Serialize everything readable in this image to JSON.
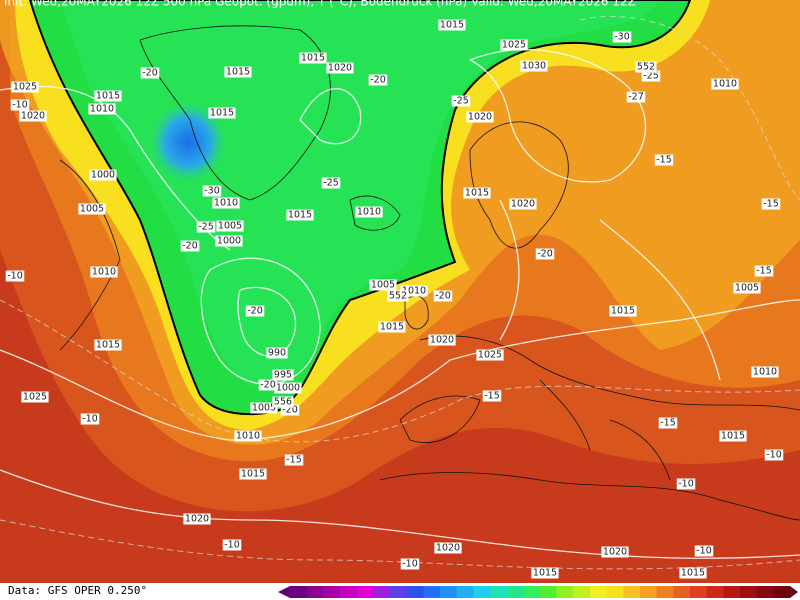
{
  "header": {
    "text": "Init: Wed,20MAY2026 12Z    500 hPa Geopot. (gpdm), T (°C), Bodendruck (hPa)    Valid: Wed,20MAY2026 12Z"
  },
  "footer": {
    "source": "Data: GFS OPER 0.250°"
  },
  "map": {
    "isobar_labels": [
      "1015",
      "1015",
      "1015",
      "1020",
      "1025",
      "1030",
      "1010",
      "1025",
      "1015",
      "1010",
      "1020",
      "1015",
      "1020",
      "1000",
      "1015",
      "1005",
      "1010",
      "1005",
      "1000",
      "1015",
      "1010",
      "1020",
      "1010",
      "1005",
      "1010",
      "1005",
      "1015",
      "1015",
      "1020",
      "1025",
      "990",
      "995",
      "1000",
      "1005",
      "1010",
      "1015",
      "1025",
      "1010",
      "1015",
      "1015",
      "1020",
      "1020",
      "1020",
      "1015",
      "1015"
    ],
    "temperature_labels": [
      "-20",
      "-10",
      "-30",
      "-25",
      "-20",
      "-25",
      "-27",
      "-30",
      "-15",
      "-25",
      "-25",
      "-20",
      "-15",
      "-10",
      "-20",
      "-15",
      "-20",
      "-20",
      "-20",
      "-20",
      "-15",
      "-10",
      "-15",
      "-15",
      "-10",
      "-10",
      "-10",
      "-10",
      "-10"
    ],
    "geopotential_labels": [
      "552",
      "552",
      "556"
    ]
  }
}
